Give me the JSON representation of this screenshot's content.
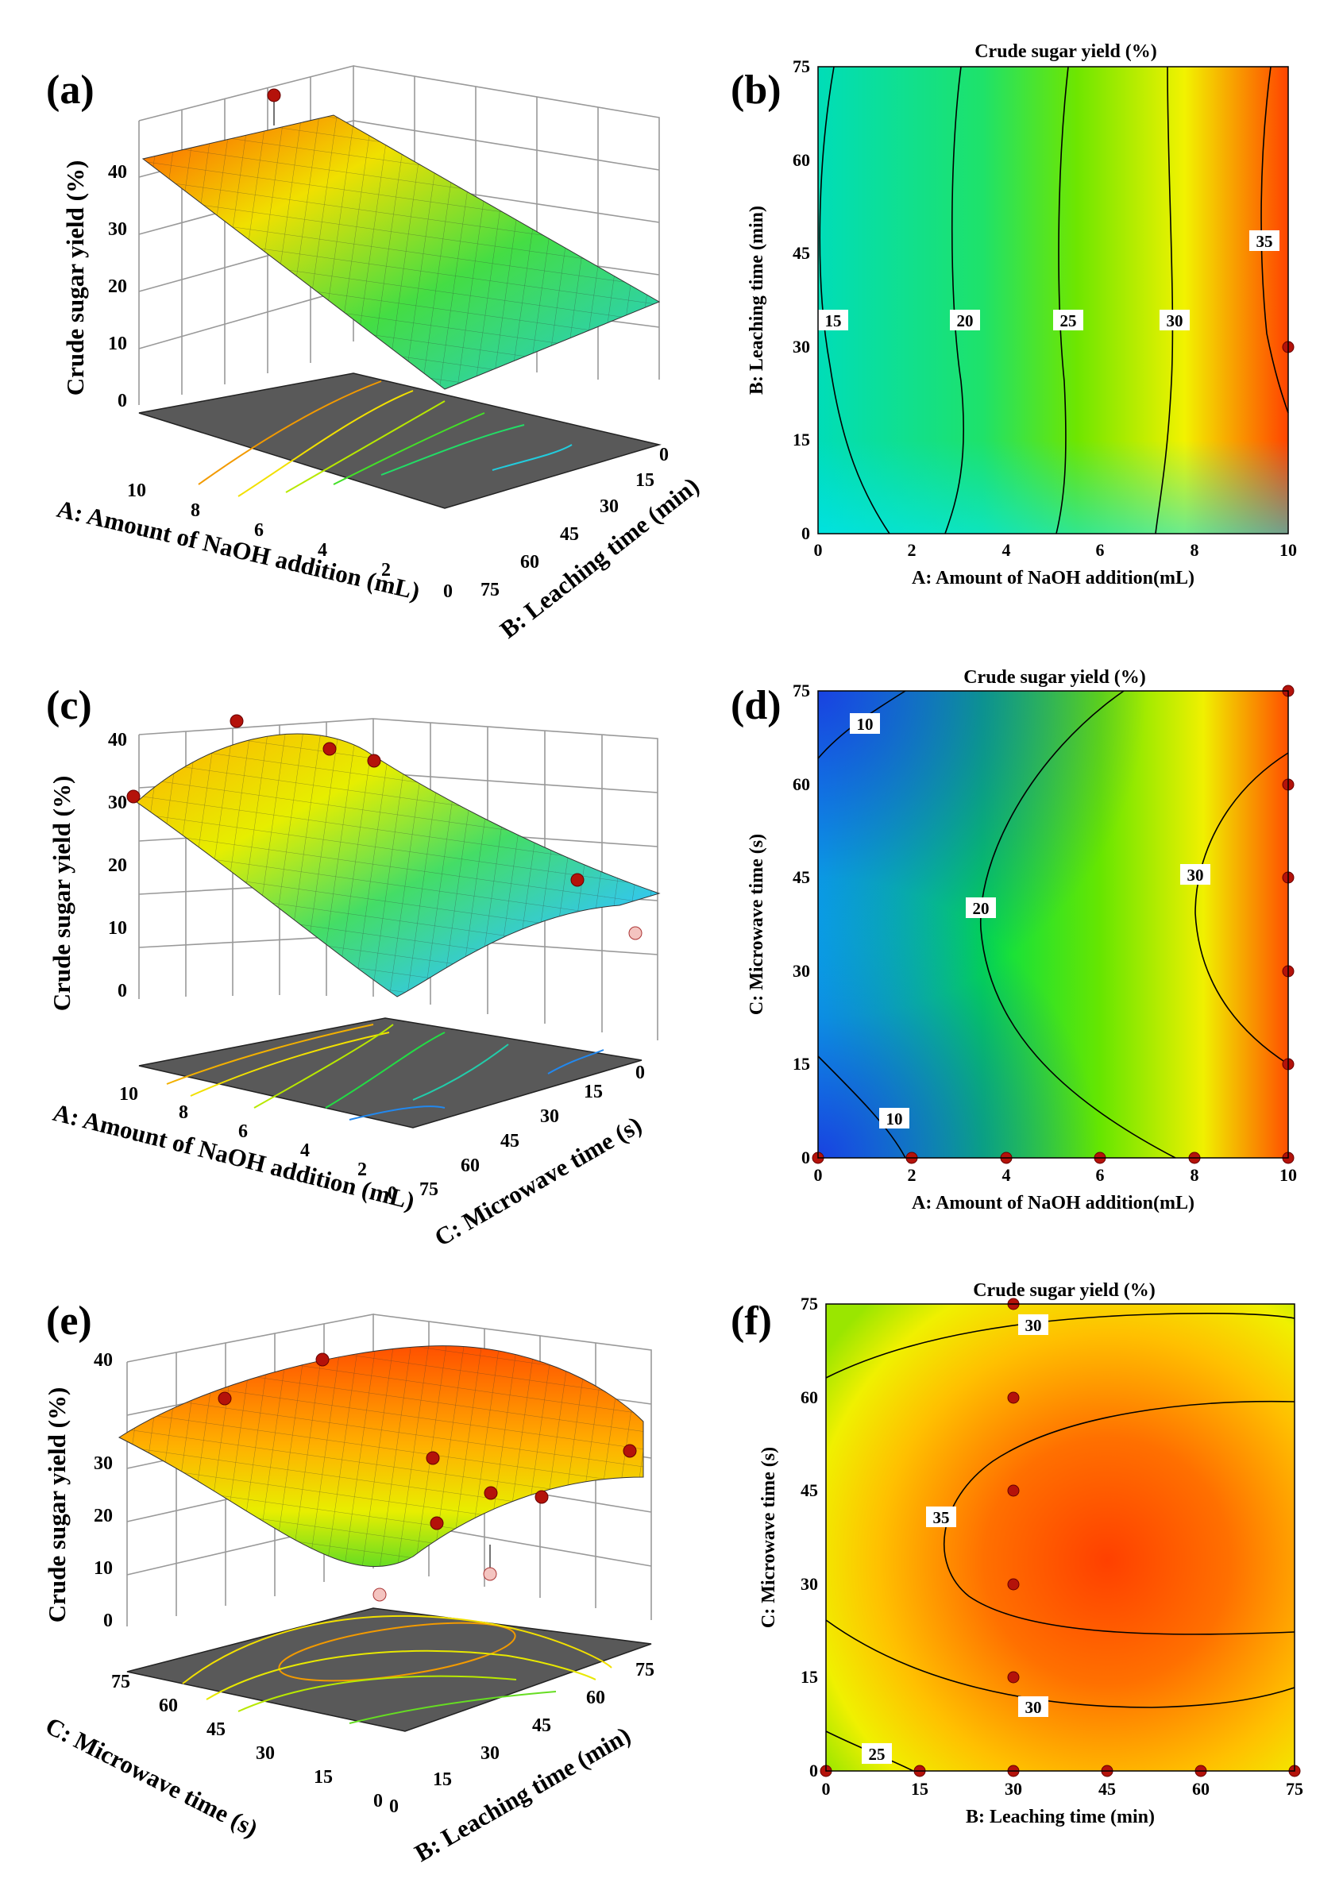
{
  "colors": {
    "low": "#1f4fe0",
    "mid_low": "#00e8e8",
    "mid": "#00dd22",
    "mid_high": "#f2f200",
    "high": "#ff4000",
    "floor": "#595959",
    "design_point": "#b4120a",
    "design_point_low": "#f4c4c0"
  },
  "chart_data": [
    {
      "id": "a",
      "panel_label": "(a)",
      "type": "surface3d",
      "zlabel": "Crude sugar yield (%)",
      "zticks": [
        "0",
        "10",
        "20",
        "30",
        "40"
      ],
      "x_axis_label": "A: Amount of NaOH addition (mL)",
      "x_ticks": [
        "10",
        "8",
        "6",
        "4",
        "2",
        "0"
      ],
      "y_axis_label": "B: Leaching time (min)",
      "y_ticks": [
        "75",
        "60",
        "45",
        "30",
        "15",
        "0"
      ],
      "zlim": [
        0,
        40
      ],
      "corner_values": {
        "A10_B0": 36,
        "A10_B75": 37,
        "A0_B75": 12,
        "A0_B0": 10
      },
      "design_points": [
        {
          "A": 10,
          "B": 30,
          "yield": 37.5
        }
      ]
    },
    {
      "id": "b",
      "panel_label": "(b)",
      "type": "contour",
      "title": "Crude sugar yield (%)",
      "xlabel": "A: Amount of NaOH addition(mL)",
      "ylabel": "B: Leaching time (min)",
      "xlim": [
        0,
        10
      ],
      "ylim": [
        0,
        75
      ],
      "x_ticks": [
        "0",
        "2",
        "4",
        "6",
        "8",
        "10"
      ],
      "y_ticks": [
        "0",
        "15",
        "30",
        "45",
        "60",
        "75"
      ],
      "contour_levels": [
        {
          "level": 15,
          "label": "15"
        },
        {
          "level": 20,
          "label": "20"
        },
        {
          "level": 25,
          "label": "25"
        },
        {
          "level": 30,
          "label": "30"
        },
        {
          "level": 35,
          "label": "35"
        }
      ],
      "design_points": [
        {
          "x": 10,
          "y": 30
        }
      ]
    },
    {
      "id": "c",
      "panel_label": "(c)",
      "type": "surface3d",
      "zlabel": "Crude sugar yield (%)",
      "zticks": [
        "0",
        "10",
        "20",
        "30",
        "40"
      ],
      "x_axis_label": "A: Amount of NaOH addition (mL)",
      "x_ticks": [
        "10",
        "8",
        "6",
        "4",
        "2",
        "0"
      ],
      "y_axis_label": "C: Microwave time (s)",
      "y_ticks": [
        "75",
        "60",
        "45",
        "30",
        "15",
        "0"
      ],
      "zlim": [
        0,
        40
      ],
      "design_points": [
        {
          "A": 10,
          "C": 0,
          "yield": 31
        },
        {
          "A": 10,
          "C": 15,
          "yield": 38
        },
        {
          "A": 10,
          "C": 30,
          "yield": 37
        },
        {
          "A": 10,
          "C": 45,
          "yield": 35
        },
        {
          "A": 10,
          "C": 60,
          "yield": 30
        },
        {
          "A": 0,
          "C": 0,
          "yield": 14
        },
        {
          "A": 0,
          "C": 75,
          "yield": 8
        }
      ]
    },
    {
      "id": "d",
      "panel_label": "(d)",
      "type": "contour",
      "title": "Crude sugar yield (%)",
      "xlabel": "A: Amount of NaOH addition(mL)",
      "ylabel": "C: Microwave time (s)",
      "xlim": [
        0,
        10
      ],
      "ylim": [
        0,
        75
      ],
      "x_ticks": [
        "0",
        "2",
        "4",
        "6",
        "8",
        "10"
      ],
      "y_ticks": [
        "0",
        "15",
        "30",
        "45",
        "60",
        "75"
      ],
      "contour_levels": [
        {
          "level": 10,
          "label": "10"
        },
        {
          "level": 10,
          "label": "10"
        },
        {
          "level": 20,
          "label": "20"
        },
        {
          "level": 30,
          "label": "30"
        }
      ],
      "design_points": [
        {
          "x": 0,
          "y": 0
        },
        {
          "x": 2,
          "y": 0
        },
        {
          "x": 4,
          "y": 0
        },
        {
          "x": 6,
          "y": 0
        },
        {
          "x": 8,
          "y": 0
        },
        {
          "x": 10,
          "y": 0
        },
        {
          "x": 10,
          "y": 15
        },
        {
          "x": 10,
          "y": 30
        },
        {
          "x": 10,
          "y": 45
        },
        {
          "x": 10,
          "y": 60
        },
        {
          "x": 10,
          "y": 75
        }
      ]
    },
    {
      "id": "e",
      "panel_label": "(e)",
      "type": "surface3d",
      "zlabel": "Crude sugar yield (%)",
      "zticks": [
        "0",
        "10",
        "20",
        "30",
        "40"
      ],
      "x_axis_label": "C: Microwave time (s)",
      "x_ticks": [
        "75",
        "60",
        "45",
        "30",
        "15",
        "0"
      ],
      "y_axis_label": "B: Leaching time (min)",
      "y_ticks": [
        "0",
        "15",
        "30",
        "45",
        "60",
        "75"
      ],
      "zlim": [
        0,
        40
      ],
      "design_points": [
        {
          "B": 0,
          "C": 75,
          "yield": 31
        },
        {
          "B": 0,
          "C": 45,
          "yield": 36
        },
        {
          "B": 30,
          "C": 30,
          "yield": 29
        },
        {
          "B": 30,
          "C": 15,
          "yield": 24
        },
        {
          "B": 45,
          "C": 30,
          "yield": 26
        },
        {
          "B": 60,
          "C": 30,
          "yield": 27
        },
        {
          "B": 75,
          "C": 30,
          "yield": 30
        },
        {
          "B": 30,
          "C": 0,
          "yield": 21
        },
        {
          "B": 15,
          "C": 0,
          "yield": 12
        },
        {
          "B": 0,
          "C": 0,
          "yield": 10
        }
      ]
    },
    {
      "id": "f",
      "panel_label": "(f)",
      "type": "contour",
      "title": "Crude sugar yield (%)",
      "xlabel": "B: Leaching time (min)",
      "ylabel": "C: Microwave time (s)",
      "xlim": [
        0,
        75
      ],
      "ylim": [
        0,
        75
      ],
      "x_ticks": [
        "0",
        "15",
        "30",
        "45",
        "60",
        "75"
      ],
      "y_ticks": [
        "0",
        "15",
        "30",
        "45",
        "60",
        "75"
      ],
      "contour_levels": [
        {
          "level": 30,
          "label": "30"
        },
        {
          "level": 30,
          "label": "30"
        },
        {
          "level": 35,
          "label": "35"
        },
        {
          "level": 25,
          "label": "25"
        }
      ],
      "design_points": [
        {
          "x": 0,
          "y": 0
        },
        {
          "x": 15,
          "y": 0
        },
        {
          "x": 30,
          "y": 0
        },
        {
          "x": 45,
          "y": 0
        },
        {
          "x": 60,
          "y": 0
        },
        {
          "x": 75,
          "y": 0
        },
        {
          "x": 30,
          "y": 15
        },
        {
          "x": 30,
          "y": 30
        },
        {
          "x": 30,
          "y": 45
        },
        {
          "x": 30,
          "y": 60
        },
        {
          "x": 30,
          "y": 75
        }
      ]
    }
  ]
}
